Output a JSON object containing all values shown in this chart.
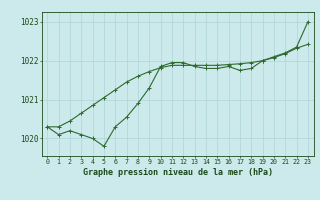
{
  "x": [
    0,
    1,
    2,
    3,
    4,
    5,
    6,
    7,
    8,
    9,
    10,
    11,
    12,
    13,
    14,
    15,
    16,
    17,
    18,
    19,
    20,
    21,
    22,
    23
  ],
  "line_zigzag": [
    1020.3,
    1020.1,
    1020.2,
    1020.1,
    1020.0,
    1019.8,
    1020.3,
    1020.55,
    1020.9,
    1021.3,
    1021.85,
    1021.95,
    1021.95,
    1021.85,
    1021.8,
    1021.8,
    1021.85,
    1021.75,
    1021.8,
    1022.0,
    1022.1,
    1022.2,
    1022.35,
    1023.0
  ],
  "line_smooth": [
    1020.3,
    1020.3,
    1020.45,
    1020.65,
    1020.85,
    1021.05,
    1021.25,
    1021.45,
    1021.6,
    1021.72,
    1021.82,
    1021.88,
    1021.88,
    1021.88,
    1021.88,
    1021.88,
    1021.9,
    1021.92,
    1021.95,
    1022.0,
    1022.08,
    1022.18,
    1022.32,
    1022.42
  ],
  "background_color": "#cce9ec",
  "line_color": "#2d6a2d",
  "grid_color": "#aed4d8",
  "text_color": "#1a4a1a",
  "ylim_min": 1019.55,
  "ylim_max": 1023.25,
  "yticks": [
    1020,
    1021,
    1022,
    1023
  ],
  "xlabel": "Graphe pression niveau de la mer (hPa)"
}
